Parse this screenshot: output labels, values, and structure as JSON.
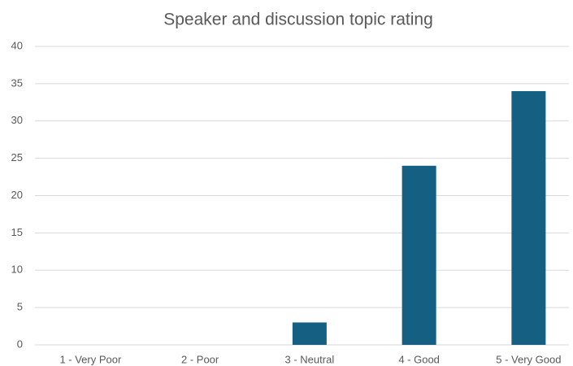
{
  "chart_data": {
    "type": "bar",
    "title": "Speaker and discussion topic rating",
    "categories": [
      "1 - Very Poor",
      "2 - Poor",
      "3 - Neutral",
      "4 - Good",
      "5 - Very Good"
    ],
    "values": [
      0,
      0,
      3,
      24,
      34
    ],
    "color": "#155f82",
    "ylim": [
      0,
      40
    ],
    "yticks": [
      0,
      5,
      10,
      15,
      20,
      25,
      30,
      35,
      40
    ],
    "grid": true
  }
}
